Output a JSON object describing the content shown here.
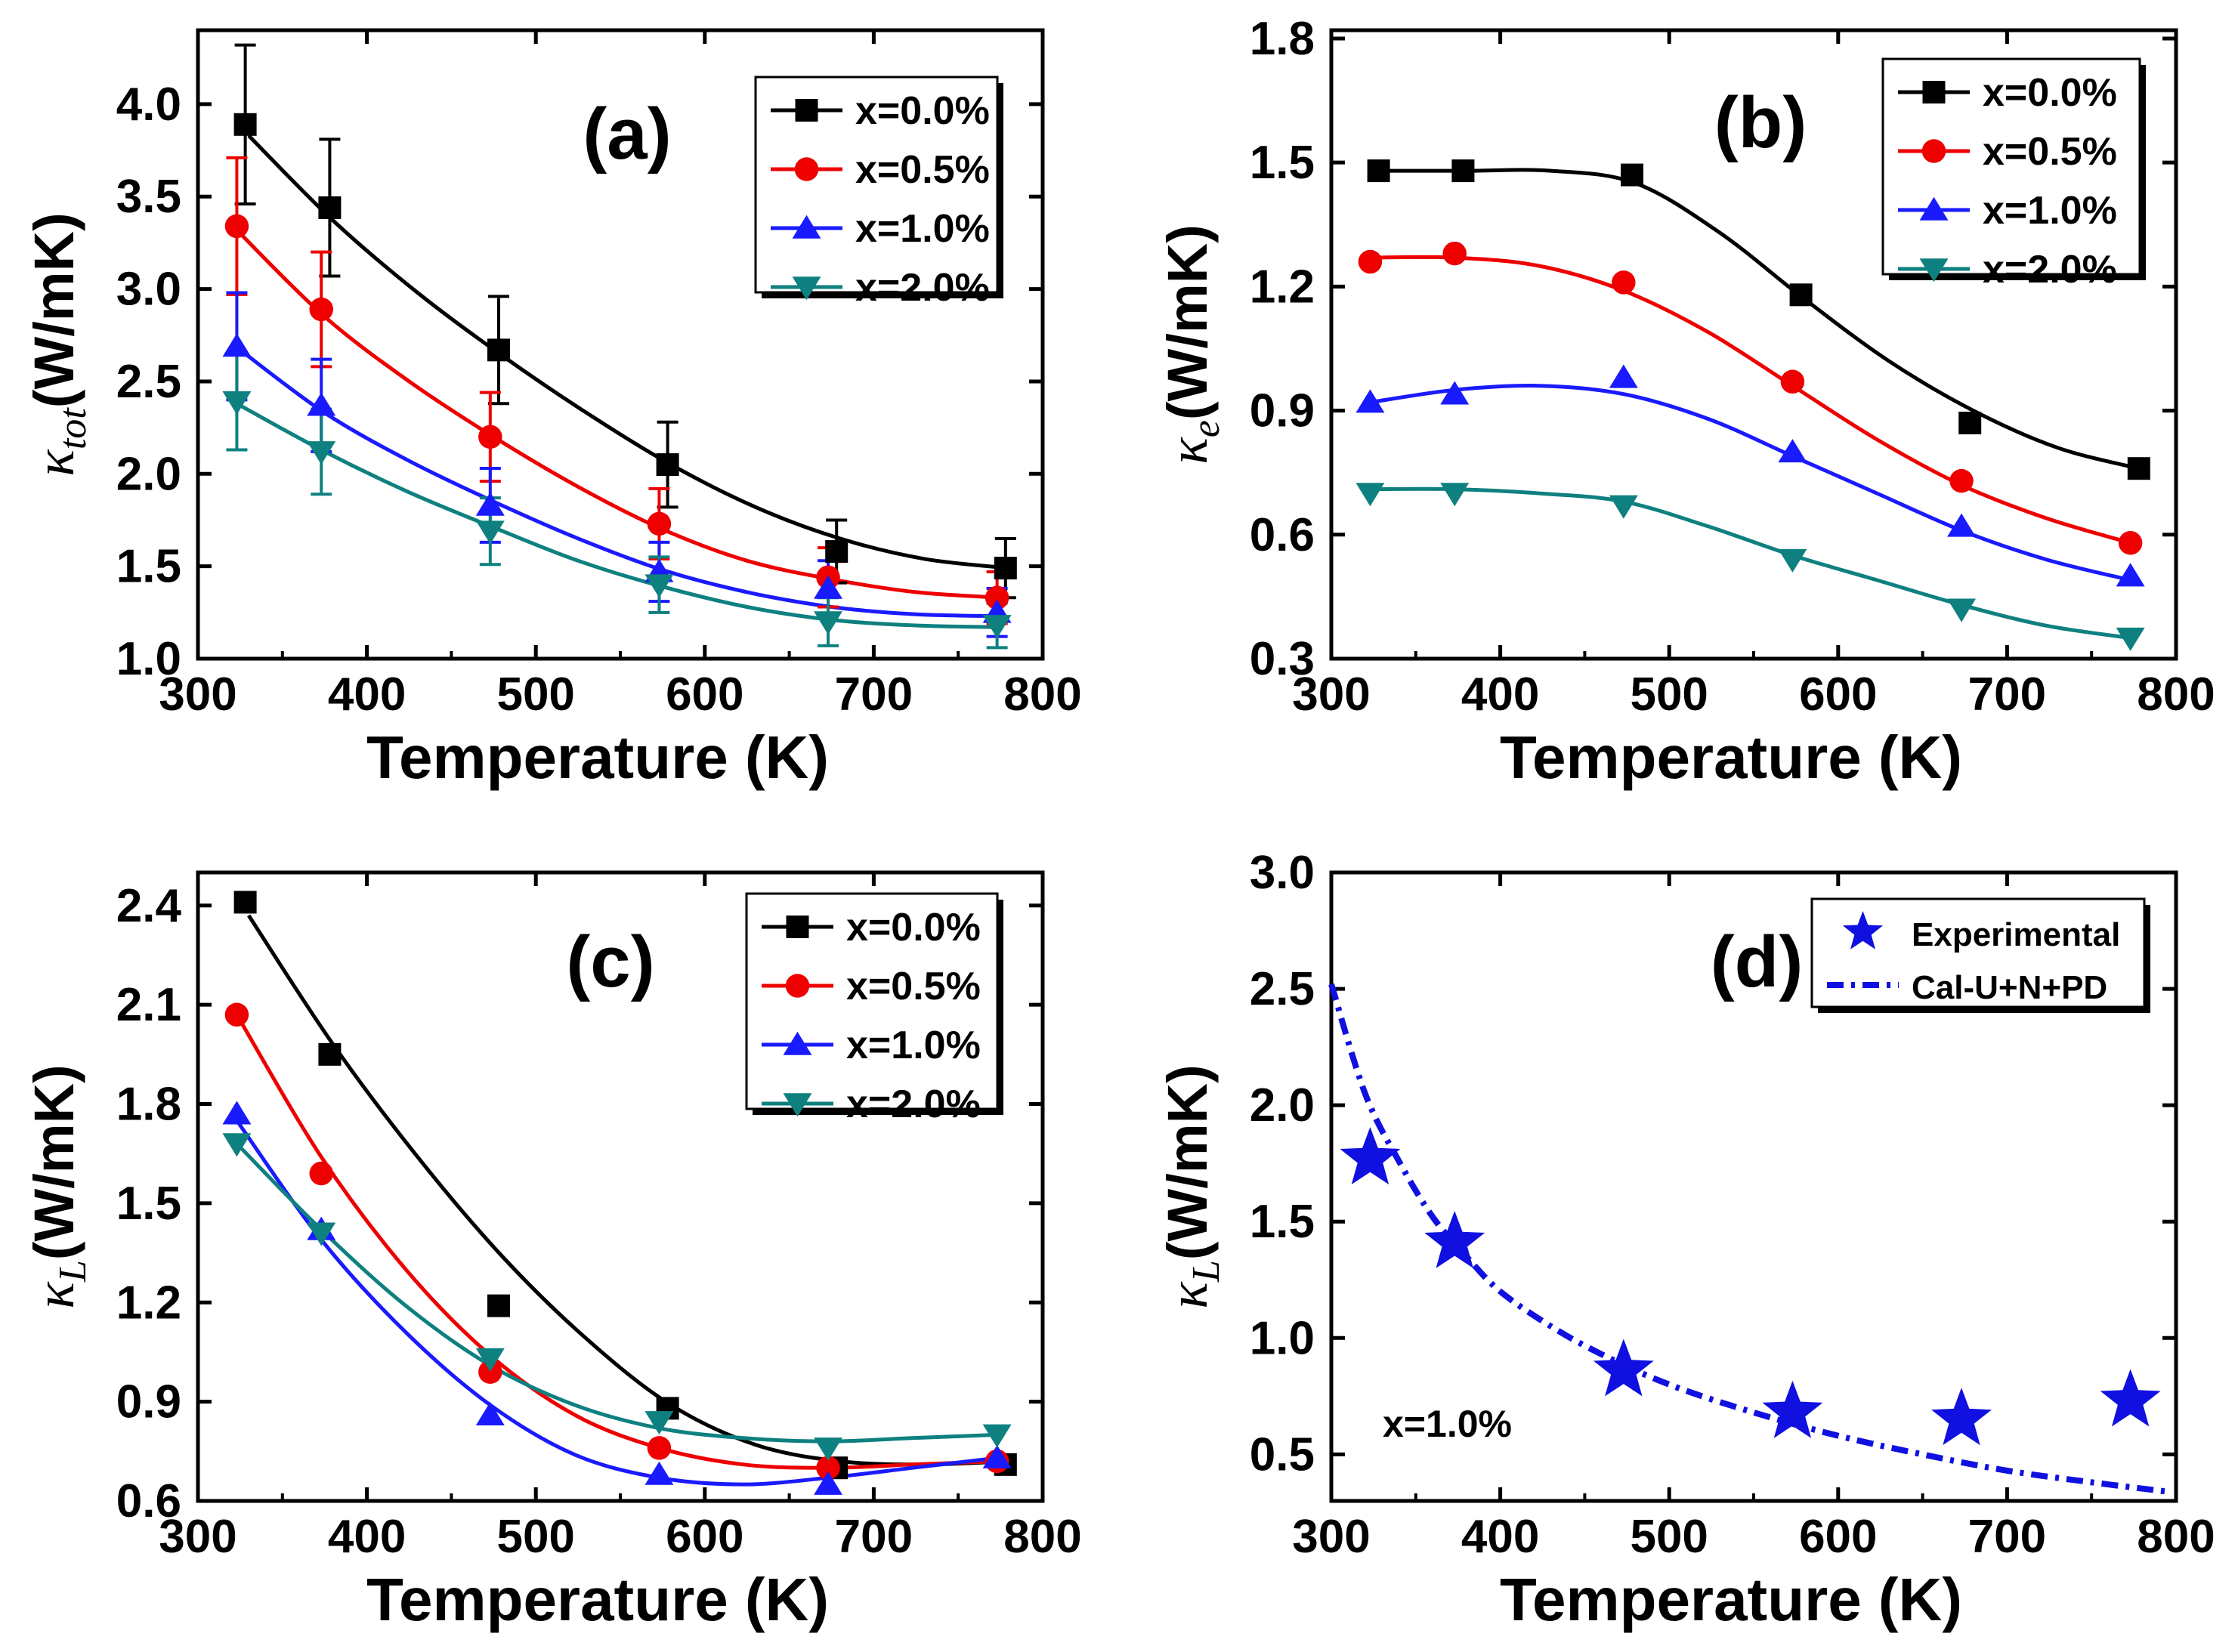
{
  "figure_colors": {
    "x=0.0%": "#000000",
    "x=0.5%": "#ee0000",
    "x=1.0%": "#1a1aff",
    "x=2.0%": "#0f8080",
    "exp": "#1010e0"
  },
  "chart_data": [
    {
      "id": "a",
      "type": "line",
      "panel_label": "(a)",
      "xlabel": "Temperature (K)",
      "ylabel_symbol": "κ",
      "ylabel_sub": "tot",
      "ylabel_unit": "(W/mK)",
      "xlim": [
        300,
        800
      ],
      "ylim": [
        1.0,
        4.4
      ],
      "xticks": [
        300,
        400,
        500,
        600,
        700,
        800
      ],
      "yticks": [
        1.0,
        1.5,
        2.0,
        2.5,
        3.0,
        3.5,
        4.0
      ],
      "ytick_labels": [
        "1.0",
        "1.5",
        "2.0",
        "2.5",
        "3.0",
        "3.5",
        "4.0"
      ],
      "legend_position": "top-right",
      "series": [
        {
          "name": "x=0.0%",
          "marker": "square",
          "x": [
            328,
            378,
            478,
            578,
            678,
            778
          ],
          "y": [
            3.89,
            3.44,
            2.67,
            2.05,
            1.58,
            1.49
          ],
          "err": [
            0.43,
            0.37,
            0.29,
            0.23,
            0.17,
            0.16
          ],
          "fit_x": [
            330,
            380,
            430,
            480,
            530,
            580,
            630,
            680,
            730,
            780
          ],
          "fit_y": [
            3.83,
            3.37,
            2.98,
            2.64,
            2.33,
            2.05,
            1.82,
            1.65,
            1.54,
            1.49
          ]
        },
        {
          "name": "x=0.5%",
          "marker": "circle",
          "x": [
            323,
            373,
            473,
            573,
            673,
            773
          ],
          "y": [
            3.34,
            2.89,
            2.2,
            1.73,
            1.44,
            1.33
          ],
          "err": [
            0.37,
            0.31,
            0.24,
            0.19,
            0.16,
            0.14
          ],
          "fit_x": [
            325,
            375,
            425,
            475,
            525,
            575,
            625,
            675,
            725,
            775
          ],
          "fit_y": [
            3.3,
            2.85,
            2.5,
            2.2,
            1.93,
            1.7,
            1.53,
            1.43,
            1.36,
            1.33
          ]
        },
        {
          "name": "x=1.0%",
          "marker": "triangle-up",
          "x": [
            323,
            373,
            473,
            573,
            673,
            773
          ],
          "y": [
            2.69,
            2.37,
            1.83,
            1.47,
            1.38,
            1.25
          ],
          "err": [
            0.29,
            0.25,
            0.2,
            0.16,
            0.15,
            0.13
          ],
          "fit_x": [
            325,
            375,
            425,
            475,
            525,
            575,
            625,
            675,
            725,
            775
          ],
          "fit_y": [
            2.67,
            2.33,
            2.07,
            1.85,
            1.65,
            1.48,
            1.36,
            1.28,
            1.24,
            1.23
          ]
        },
        {
          "name": "x=2.0%",
          "marker": "triangle-down",
          "x": [
            323,
            373,
            473,
            573,
            673,
            773
          ],
          "y": [
            2.39,
            2.12,
            1.69,
            1.4,
            1.2,
            1.18
          ],
          "err": [
            0.26,
            0.23,
            0.18,
            0.15,
            0.13,
            0.12
          ],
          "fit_x": [
            325,
            375,
            425,
            475,
            525,
            575,
            625,
            675,
            725,
            775
          ],
          "fit_y": [
            2.37,
            2.12,
            1.9,
            1.71,
            1.53,
            1.39,
            1.28,
            1.21,
            1.18,
            1.17
          ]
        }
      ]
    },
    {
      "id": "b",
      "type": "line",
      "panel_label": "(b)",
      "xlabel": "Temperature (K)",
      "ylabel_symbol": "κ",
      "ylabel_sub": "e",
      "ylabel_unit": "(W/mK)",
      "xlim": [
        300,
        800
      ],
      "ylim": [
        0.3,
        1.82
      ],
      "xticks": [
        300,
        400,
        500,
        600,
        700,
        800
      ],
      "yticks": [
        0.3,
        0.6,
        0.9,
        1.2,
        1.5,
        1.8
      ],
      "ytick_labels": [
        "0.3",
        "0.6",
        "0.9",
        "1.2",
        "1.5",
        "1.8"
      ],
      "legend_position": "top-right",
      "series": [
        {
          "name": "x=0.0%",
          "marker": "square",
          "x": [
            328,
            378,
            478,
            578,
            678,
            778
          ],
          "y": [
            1.48,
            1.48,
            1.47,
            1.18,
            0.87,
            0.76
          ],
          "fit_x": [
            328,
            380,
            430,
            480,
            530,
            580,
            630,
            680,
            730,
            778
          ],
          "fit_y": [
            1.48,
            1.48,
            1.48,
            1.45,
            1.33,
            1.17,
            1.02,
            0.9,
            0.81,
            0.76
          ]
        },
        {
          "name": "x=0.5%",
          "marker": "circle",
          "x": [
            323,
            373,
            473,
            573,
            673,
            773
          ],
          "y": [
            1.26,
            1.28,
            1.21,
            0.97,
            0.73,
            0.58
          ],
          "fit_x": [
            323,
            373,
            423,
            473,
            523,
            573,
            623,
            673,
            723,
            773
          ],
          "fit_y": [
            1.27,
            1.27,
            1.25,
            1.19,
            1.09,
            0.96,
            0.83,
            0.72,
            0.64,
            0.58
          ]
        },
        {
          "name": "x=1.0%",
          "marker": "triangle-up",
          "x": [
            323,
            373,
            473,
            573,
            673,
            773
          ],
          "y": [
            0.92,
            0.94,
            0.98,
            0.8,
            0.62,
            0.5
          ],
          "fit_x": [
            323,
            373,
            423,
            473,
            523,
            573,
            623,
            673,
            723,
            773
          ],
          "fit_y": [
            0.92,
            0.95,
            0.96,
            0.94,
            0.88,
            0.79,
            0.7,
            0.61,
            0.54,
            0.49
          ]
        },
        {
          "name": "x=2.0%",
          "marker": "triangle-down",
          "x": [
            323,
            373,
            473,
            573,
            673,
            773
          ],
          "y": [
            0.7,
            0.7,
            0.67,
            0.54,
            0.42,
            0.35
          ],
          "fit_x": [
            323,
            373,
            423,
            473,
            523,
            573,
            623,
            673,
            723,
            773
          ],
          "fit_y": [
            0.71,
            0.71,
            0.7,
            0.68,
            0.62,
            0.55,
            0.49,
            0.43,
            0.38,
            0.35
          ]
        }
      ]
    },
    {
      "id": "c",
      "type": "line",
      "panel_label": "(c)",
      "xlabel": "Temperature (K)",
      "ylabel_symbol": "κ",
      "ylabel_sub": "L",
      "ylabel_unit": "(W/mK)",
      "xlim": [
        300,
        800
      ],
      "ylim": [
        0.6,
        2.5
      ],
      "xticks": [
        300,
        400,
        500,
        600,
        700,
        800
      ],
      "yticks": [
        0.6,
        0.9,
        1.2,
        1.5,
        1.8,
        2.1,
        2.4
      ],
      "ytick_labels": [
        "0.6",
        "0.9",
        "1.2",
        "1.5",
        "1.8",
        "2.1",
        "2.4"
      ],
      "legend_position": "top-right",
      "series": [
        {
          "name": "x=0.0%",
          "marker": "square",
          "x": [
            328,
            378,
            478,
            578,
            678,
            778
          ],
          "y": [
            2.41,
            1.95,
            1.19,
            0.88,
            0.7,
            0.71
          ],
          "fit_x": [
            330,
            380,
            430,
            480,
            530,
            580,
            630,
            680,
            730,
            778
          ],
          "fit_y": [
            2.37,
            1.98,
            1.64,
            1.34,
            1.09,
            0.89,
            0.77,
            0.72,
            0.71,
            0.72
          ]
        },
        {
          "name": "x=0.5%",
          "marker": "circle",
          "x": [
            323,
            373,
            473,
            573,
            673,
            773
          ],
          "y": [
            2.07,
            1.59,
            0.99,
            0.76,
            0.7,
            0.72
          ],
          "fit_x": [
            323,
            373,
            423,
            473,
            523,
            573,
            623,
            673,
            723,
            773
          ],
          "fit_y": [
            2.07,
            1.64,
            1.3,
            1.04,
            0.86,
            0.76,
            0.71,
            0.7,
            0.71,
            0.72
          ]
        },
        {
          "name": "x=1.0%",
          "marker": "triangle-up",
          "x": [
            323,
            373,
            473,
            573,
            673,
            773
          ],
          "y": [
            1.77,
            1.42,
            0.86,
            0.68,
            0.65,
            0.73
          ],
          "fit_x": [
            323,
            373,
            423,
            473,
            523,
            573,
            623,
            673,
            723,
            773
          ],
          "fit_y": [
            1.75,
            1.39,
            1.11,
            0.89,
            0.74,
            0.67,
            0.65,
            0.67,
            0.7,
            0.73
          ]
        },
        {
          "name": "x=2.0%",
          "marker": "triangle-down",
          "x": [
            323,
            373,
            473,
            573,
            673,
            773
          ],
          "y": [
            1.68,
            1.41,
            1.03,
            0.84,
            0.76,
            0.8
          ],
          "fit_x": [
            323,
            373,
            423,
            473,
            523,
            573,
            623,
            673,
            723,
            773
          ],
          "fit_y": [
            1.68,
            1.42,
            1.19,
            1.01,
            0.89,
            0.82,
            0.79,
            0.78,
            0.79,
            0.8
          ]
        }
      ]
    },
    {
      "id": "d",
      "type": "scatter",
      "panel_label": "(d)",
      "annotation": "x=1.0%",
      "xlabel": "Temperature (K)",
      "ylabel_symbol": "κ",
      "ylabel_sub": "L",
      "ylabel_unit": "(W/mK)",
      "xlim": [
        300,
        800
      ],
      "ylim": [
        0.3,
        3.0
      ],
      "xticks": [
        300,
        400,
        500,
        600,
        700,
        800
      ],
      "yticks": [
        0.5,
        1.0,
        1.5,
        2.0,
        2.5,
        3.0
      ],
      "ytick_labels": [
        "0.5",
        "1.0",
        "1.5",
        "2.0",
        "2.5",
        "3.0"
      ],
      "legend_position": "top-right",
      "series": [
        {
          "name": "Experimental",
          "marker": "star",
          "x": [
            323,
            373,
            473,
            573,
            673,
            773
          ],
          "y": [
            1.77,
            1.41,
            0.86,
            0.68,
            0.65,
            0.73
          ]
        },
        {
          "name": "Cal-U+N+PD",
          "marker": "none",
          "line": "dash-dot",
          "fit_x": [
            300,
            320,
            340,
            360,
            380,
            400,
            430,
            460,
            500,
            550,
            600,
            650,
            700,
            750,
            795
          ],
          "fit_y": [
            2.52,
            2.05,
            1.76,
            1.52,
            1.35,
            1.2,
            1.05,
            0.93,
            0.8,
            0.68,
            0.58,
            0.5,
            0.43,
            0.38,
            0.34
          ]
        }
      ]
    }
  ]
}
